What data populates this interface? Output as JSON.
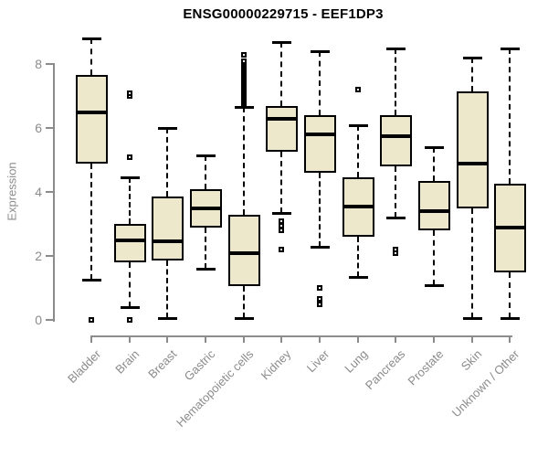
{
  "window": {
    "title": "ENSG00000229715 - EEF1DP3"
  },
  "colors": {
    "box_fill": "#EDE7CB",
    "box_line": "#000000",
    "axis": "#8B8B8B",
    "title": "#000000",
    "background": "#FFFFFF"
  },
  "chart_data": {
    "type": "boxplot",
    "title": "ENSG00000229715 - EEF1DP3",
    "xlabel": "",
    "ylabel": "Expression",
    "ylim": [
      0,
      8.8
    ],
    "yticks": [
      0,
      2,
      4,
      6,
      8
    ],
    "grid": false,
    "legend": false,
    "categories": [
      "Bladder",
      "Brain",
      "Breast",
      "Gastric",
      "Hematopoietic cells",
      "Kidney",
      "Liver",
      "Lung",
      "Pancreas",
      "Prostate",
      "Skin",
      "Unknown / Other"
    ],
    "series": [
      {
        "name": "Bladder",
        "low": 1.25,
        "q1": 4.9,
        "median": 6.5,
        "q3": 7.65,
        "high": 8.8,
        "outliers": [
          0
        ]
      },
      {
        "name": "Brain",
        "low": 0.4,
        "q1": 1.8,
        "median": 2.5,
        "q3": 3.0,
        "high": 4.45,
        "outliers": [
          0,
          5.1,
          7.0,
          7.1
        ]
      },
      {
        "name": "Breast",
        "low": 0.05,
        "q1": 1.85,
        "median": 2.45,
        "q3": 3.85,
        "high": 6.0,
        "outliers": []
      },
      {
        "name": "Gastric",
        "low": 1.6,
        "q1": 2.9,
        "median": 3.5,
        "q3": 4.1,
        "high": 5.15,
        "outliers": []
      },
      {
        "name": "Hematopoietic cells",
        "low": 0.05,
        "q1": 1.05,
        "median": 2.1,
        "q3": 3.3,
        "high": 6.65,
        "outliers": [
          6.75,
          6.8,
          6.85,
          6.9,
          6.95,
          7.0,
          7.05,
          7.1,
          7.15,
          7.2,
          7.25,
          7.3,
          7.35,
          7.4,
          7.45,
          7.5,
          7.55,
          7.6,
          7.65,
          7.7,
          7.75,
          7.8,
          7.85,
          7.9,
          7.95,
          8.0,
          8.05,
          8.1,
          8.3
        ]
      },
      {
        "name": "Kidney",
        "low": 3.35,
        "q1": 5.25,
        "median": 6.3,
        "q3": 6.7,
        "high": 8.7,
        "outliers": [
          3.1,
          2.95,
          2.8,
          2.2
        ]
      },
      {
        "name": "Liver",
        "low": 2.3,
        "q1": 4.6,
        "median": 5.8,
        "q3": 6.4,
        "high": 8.4,
        "outliers": [
          1.0,
          0.65,
          0.5
        ]
      },
      {
        "name": "Lung",
        "low": 1.35,
        "q1": 2.6,
        "median": 3.55,
        "q3": 4.45,
        "high": 6.1,
        "outliers": [
          7.2
        ]
      },
      {
        "name": "Pancreas",
        "low": 3.2,
        "q1": 4.8,
        "median": 5.75,
        "q3": 6.4,
        "high": 8.5,
        "outliers": [
          2.1,
          2.2
        ]
      },
      {
        "name": "Prostate",
        "low": 1.1,
        "q1": 2.8,
        "median": 3.4,
        "q3": 4.35,
        "high": 5.4,
        "outliers": []
      },
      {
        "name": "Skin",
        "low": 0.05,
        "q1": 3.5,
        "median": 4.9,
        "q3": 7.15,
        "high": 8.2,
        "outliers": []
      },
      {
        "name": "Unknown / Other",
        "low": 0.05,
        "q1": 1.5,
        "median": 2.9,
        "q3": 4.25,
        "high": 8.5,
        "outliers": []
      }
    ]
  }
}
